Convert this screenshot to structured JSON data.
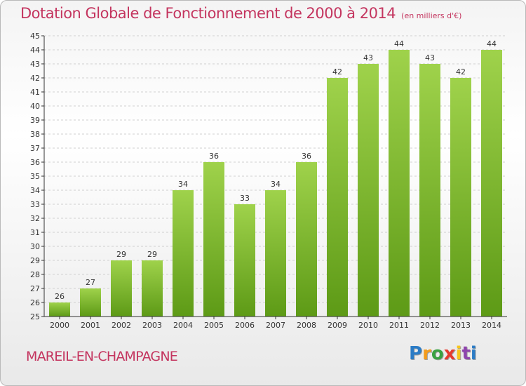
{
  "title": "Dotation Globale de Fonctionnement de 2000 à 2014",
  "unit_label": "(en milliers d'€)",
  "commune": "MAREIL-EN-CHAMPAGNE",
  "logo_text": "Proxiti",
  "colors": {
    "title": "#c4355f",
    "bar_light": "#9fd24b",
    "bar_dark": "#5d9a16",
    "axis": "#333333",
    "grid": "#d0d0d0",
    "logo": [
      "#2b7cc6",
      "#f39c1d",
      "#3aa142",
      "#e63a2e",
      "#f7c51d",
      "#8e44ad",
      "#2b7cc6"
    ]
  },
  "chart_data": {
    "type": "bar",
    "title": "Dotation Globale de Fonctionnement de 2000 à 2014",
    "subtitle": "(en milliers d'€)",
    "categories": [
      "2000",
      "2001",
      "2002",
      "2003",
      "2004",
      "2005",
      "2006",
      "2007",
      "2008",
      "2009",
      "2010",
      "2011",
      "2012",
      "2013",
      "2014"
    ],
    "values": [
      26,
      27,
      29,
      29,
      34,
      36,
      33,
      34,
      36,
      42,
      43,
      44,
      43,
      42,
      44
    ],
    "ylim": [
      25,
      45
    ],
    "yticks": [
      25,
      26,
      27,
      28,
      29,
      30,
      31,
      32,
      33,
      34,
      35,
      36,
      37,
      38,
      39,
      40,
      41,
      42,
      43,
      44,
      45
    ],
    "xlabel": "",
    "ylabel": "",
    "grid": "horizontal dashed",
    "legend": "none"
  }
}
